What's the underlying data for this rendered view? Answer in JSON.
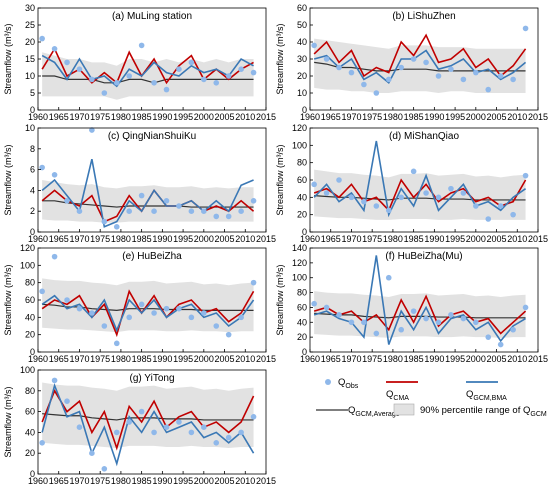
{
  "legend": [
    {
      "symbol": "Q",
      "subscript": "Obs",
      "color": "#8fb8ea",
      "kind": "marker"
    },
    {
      "symbol": "Q",
      "subscript": "CMA",
      "color": "#c00000",
      "kind": "line"
    },
    {
      "symbol": "Q",
      "subscript": "GCM,BMA",
      "color": "#3a78b5",
      "kind": "line"
    },
    {
      "symbol": "Q",
      "subscript": "GCM,Average",
      "color": "#333333",
      "kind": "line"
    },
    {
      "text": "90% percentile range of Q",
      "subscript": "GCM",
      "color": "#e2e2e2",
      "kind": "area"
    }
  ],
  "chart_data": [
    {
      "type": "line",
      "title": "(a) MuLing station",
      "y_label": "Streamflow (m³/s)",
      "x": [
        1961,
        1964,
        1967,
        1970,
        1973,
        1976,
        1979,
        1982,
        1985,
        1988,
        1991,
        1994,
        1997,
        2000,
        2003,
        2006,
        2009,
        2012
      ],
      "xlim": [
        1960,
        2015
      ],
      "xticks": [
        1960,
        1965,
        1970,
        1975,
        1980,
        1985,
        1990,
        1995,
        2000,
        2005,
        2010,
        2015
      ],
      "ylim": [
        0,
        30
      ],
      "yticks": [
        0,
        5,
        10,
        15,
        20,
        25,
        30
      ],
      "band": {
        "low": [
          4,
          4,
          4,
          4,
          4,
          4,
          3,
          4,
          4,
          4,
          4,
          4,
          4,
          4,
          4,
          4,
          4,
          4
        ],
        "high": [
          17,
          16,
          15,
          15,
          14,
          14,
          13,
          15,
          15,
          14,
          15,
          14,
          15,
          14,
          15,
          14,
          15,
          15
        ]
      },
      "series": [
        {
          "values": [
            21,
            18,
            14,
            12,
            9,
            5,
            8,
            10,
            19,
            8,
            6,
            12,
            14,
            9,
            8,
            10,
            12,
            11
          ]
        },
        {
          "values": [
            12,
            18,
            10,
            12,
            8,
            11,
            8,
            17,
            10,
            15,
            8,
            13,
            16,
            9,
            12,
            9,
            12,
            14
          ]
        },
        {
          "values": [
            16,
            14,
            9,
            15,
            9,
            10,
            7,
            12,
            10,
            14,
            11,
            10,
            13,
            11,
            12,
            10,
            15,
            13
          ]
        },
        {
          "values": [
            10,
            10,
            9,
            9,
            9,
            8,
            8,
            9,
            9,
            8,
            9,
            9,
            9,
            9,
            9,
            9,
            9,
            9
          ]
        }
      ]
    },
    {
      "type": "line",
      "title": "(b) LiShuZhen",
      "y_label": "Streamflow (m³/s)",
      "x": [
        1961,
        1964,
        1967,
        1970,
        1973,
        1976,
        1979,
        1982,
        1985,
        1988,
        1991,
        1994,
        1997,
        2000,
        2003,
        2006,
        2009,
        2012
      ],
      "xlim": [
        1960,
        2015
      ],
      "xticks": [
        1960,
        1965,
        1970,
        1975,
        1980,
        1985,
        1990,
        1995,
        2000,
        2005,
        2010,
        2015
      ],
      "ylim": [
        0,
        60
      ],
      "yticks": [
        0,
        10,
        20,
        30,
        40,
        50,
        60
      ],
      "band": {
        "low": [
          13,
          12,
          12,
          11,
          11,
          10,
          10,
          11,
          11,
          11,
          10,
          11,
          11,
          10,
          10,
          10,
          10,
          10
        ],
        "high": [
          42,
          41,
          40,
          39,
          38,
          37,
          36,
          38,
          38,
          38,
          37,
          37,
          37,
          36,
          36,
          36,
          36,
          36
        ]
      },
      "series": [
        {
          "values": [
            38,
            30,
            25,
            22,
            15,
            10,
            18,
            25,
            30,
            28,
            20,
            24,
            18,
            22,
            12,
            20,
            18,
            48
          ]
        },
        {
          "values": [
            33,
            40,
            28,
            35,
            20,
            25,
            22,
            40,
            32,
            44,
            28,
            30,
            36,
            25,
            30,
            20,
            26,
            36
          ]
        },
        {
          "values": [
            30,
            32,
            25,
            30,
            18,
            22,
            16,
            30,
            30,
            35,
            24,
            26,
            30,
            22,
            24,
            18,
            22,
            28
          ]
        },
        {
          "values": [
            28,
            27,
            25,
            25,
            24,
            23,
            23,
            24,
            24,
            24,
            23,
            23,
            23,
            23,
            23,
            23,
            23,
            23
          ]
        }
      ]
    },
    {
      "type": "line",
      "title": "(c) QingNianShuiKu",
      "y_label": "Streamflow (m³/s)",
      "x": [
        1961,
        1964,
        1967,
        1970,
        1973,
        1976,
        1979,
        1982,
        1985,
        1988,
        1991,
        1994,
        1997,
        2000,
        2003,
        2006,
        2009,
        2012
      ],
      "xlim": [
        1960,
        2015
      ],
      "xticks": [
        1960,
        1965,
        1970,
        1975,
        1980,
        1985,
        1990,
        1995,
        2000,
        2005,
        2010,
        2015
      ],
      "ylim": [
        0,
        10
      ],
      "yticks": [
        0,
        2,
        4,
        6,
        8,
        10
      ],
      "band": {
        "low": [
          1.2,
          1.1,
          1.1,
          1,
          1,
          0.9,
          0.9,
          1,
          1,
          1,
          1,
          1,
          1,
          1,
          1,
          1,
          1,
          1
        ],
        "high": [
          5,
          4.8,
          4.6,
          4.5,
          4.6,
          4.3,
          4.2,
          4.4,
          4.4,
          4.5,
          4.3,
          4.3,
          4.4,
          4.2,
          4.3,
          4.2,
          4.3,
          4.3
        ]
      },
      "series": [
        {
          "values": [
            6.2,
            5.5,
            3,
            2,
            9.8,
            1,
            0.5,
            2,
            3.5,
            2,
            3,
            2.5,
            2,
            2,
            1.5,
            1.5,
            2,
            3
          ]
        },
        {
          "values": [
            3,
            4,
            3,
            2.5,
            3.5,
            1,
            1.5,
            3.5,
            2,
            4,
            2.5,
            2.5,
            3,
            2,
            2.5,
            2,
            3,
            2
          ]
        },
        {
          "values": [
            4,
            5,
            3.5,
            2,
            7,
            0.5,
            1,
            3,
            2,
            4,
            2.5,
            2.5,
            3,
            2,
            3,
            2,
            4.5,
            5
          ]
        },
        {
          "values": [
            3,
            3,
            2.8,
            2.7,
            2.6,
            2.5,
            2.4,
            2.5,
            2.5,
            2.5,
            2.5,
            2.5,
            2.4,
            2.4,
            2.4,
            2.4,
            2.4,
            2.4
          ]
        }
      ]
    },
    {
      "type": "line",
      "title": "(d) MiShanQiao",
      "y_label": "Streamflow (m³/s)",
      "x": [
        1961,
        1964,
        1967,
        1970,
        1973,
        1976,
        1979,
        1982,
        1985,
        1988,
        1991,
        1994,
        1997,
        2000,
        2003,
        2006,
        2009,
        2012
      ],
      "xlim": [
        1960,
        2015
      ],
      "xticks": [
        1960,
        1965,
        1970,
        1975,
        1980,
        1985,
        1990,
        1995,
        2000,
        2005,
        2010,
        2015
      ],
      "ylim": [
        0,
        120
      ],
      "yticks": [
        0,
        20,
        40,
        60,
        80,
        100,
        120
      ],
      "band": {
        "low": [
          18,
          17,
          16,
          16,
          15,
          14,
          14,
          15,
          15,
          15,
          14,
          14,
          15,
          14,
          14,
          14,
          14,
          14
        ],
        "high": [
          72,
          70,
          68,
          68,
          66,
          65,
          63,
          67,
          67,
          68,
          65,
          66,
          67,
          64,
          65,
          63,
          65,
          66
        ]
      },
      "series": [
        {
          "values": [
            55,
            45,
            60,
            40,
            35,
            30,
            25,
            40,
            70,
            45,
            40,
            50,
            45,
            30,
            15,
            30,
            20,
            65
          ]
        },
        {
          "values": [
            45,
            50,
            40,
            55,
            35,
            40,
            25,
            60,
            40,
            55,
            35,
            45,
            50,
            35,
            40,
            30,
            35,
            60
          ]
        },
        {
          "values": [
            40,
            55,
            35,
            45,
            25,
            105,
            20,
            50,
            30,
            65,
            25,
            40,
            55,
            30,
            35,
            25,
            40,
            50
          ]
        },
        {
          "values": [
            42,
            41,
            40,
            40,
            39,
            38,
            37,
            39,
            39,
            39,
            38,
            38,
            38,
            37,
            37,
            37,
            37,
            37
          ]
        }
      ]
    },
    {
      "type": "line",
      "title": "(e) HuBeiZha",
      "y_label": "Streamflow (m³/s)",
      "x": [
        1961,
        1964,
        1967,
        1970,
        1973,
        1976,
        1979,
        1982,
        1985,
        1988,
        1991,
        1994,
        1997,
        2000,
        2003,
        2006,
        2009,
        2012
      ],
      "xlim": [
        1960,
        2015
      ],
      "xticks": [
        1960,
        1965,
        1970,
        1975,
        1980,
        1985,
        1990,
        1995,
        2000,
        2005,
        2010,
        2015
      ],
      "ylim": [
        0,
        120
      ],
      "yticks": [
        0,
        20,
        40,
        60,
        80,
        100,
        120
      ],
      "band": {
        "low": [
          28,
          27,
          26,
          26,
          25,
          24,
          23,
          25,
          25,
          25,
          24,
          24,
          25,
          24,
          24,
          23,
          24,
          24
        ],
        "high": [
          85,
          83,
          82,
          82,
          80,
          79,
          77,
          81,
          81,
          82,
          79,
          80,
          81,
          78,
          79,
          77,
          79,
          80
        ]
      },
      "series": [
        {
          "values": [
            70,
            110,
            60,
            50,
            45,
            30,
            10,
            40,
            55,
            45,
            50,
            50,
            40,
            45,
            30,
            20,
            40,
            80
          ]
        },
        {
          "values": [
            50,
            60,
            55,
            65,
            40,
            55,
            20,
            70,
            45,
            65,
            40,
            55,
            60,
            45,
            50,
            35,
            45,
            70
          ]
        },
        {
          "values": [
            55,
            65,
            50,
            55,
            40,
            60,
            25,
            60,
            45,
            60,
            40,
            50,
            55,
            40,
            45,
            30,
            40,
            60
          ]
        },
        {
          "values": [
            55,
            54,
            52,
            52,
            50,
            49,
            48,
            50,
            50,
            50,
            49,
            49,
            49,
            48,
            48,
            48,
            48,
            48
          ]
        }
      ]
    },
    {
      "type": "line",
      "title": "(f) HuBeiZha(Mu)",
      "y_label": "Streamflow (m³/s)",
      "x": [
        1961,
        1964,
        1967,
        1970,
        1973,
        1976,
        1979,
        1982,
        1985,
        1988,
        1991,
        1994,
        1997,
        2000,
        2003,
        2006,
        2009,
        2012
      ],
      "xlim": [
        1960,
        2015
      ],
      "xticks": [
        1960,
        1965,
        1970,
        1975,
        1980,
        1985,
        1990,
        1995,
        2000,
        2005,
        2010,
        2015
      ],
      "ylim": [
        0,
        140
      ],
      "yticks": [
        0,
        20,
        40,
        60,
        80,
        100,
        120,
        140
      ],
      "band": {
        "low": [
          24,
          23,
          22,
          22,
          21,
          20,
          19,
          21,
          21,
          21,
          20,
          20,
          21,
          20,
          20,
          19,
          20,
          20
        ],
        "high": [
          82,
          80,
          79,
          79,
          77,
          76,
          74,
          78,
          78,
          79,
          76,
          77,
          78,
          75,
          76,
          74,
          76,
          77
        ]
      },
      "series": [
        {
          "values": [
            65,
            60,
            50,
            40,
            40,
            25,
            100,
            30,
            55,
            45,
            40,
            50,
            45,
            40,
            20,
            10,
            30,
            60
          ]
        },
        {
          "values": [
            55,
            60,
            50,
            55,
            40,
            50,
            30,
            70,
            40,
            75,
            35,
            50,
            55,
            40,
            45,
            25,
            40,
            55
          ]
        },
        {
          "values": [
            50,
            55,
            45,
            40,
            20,
            130,
            10,
            55,
            30,
            60,
            25,
            45,
            50,
            30,
            40,
            15,
            35,
            45
          ]
        },
        {
          "values": [
            52,
            51,
            50,
            50,
            48,
            47,
            46,
            48,
            48,
            48,
            47,
            47,
            47,
            46,
            46,
            46,
            46,
            46
          ]
        }
      ]
    },
    {
      "type": "line",
      "title": "(g) YiTong",
      "y_label": "Streamflow (m³/s)",
      "x": [
        1961,
        1964,
        1967,
        1970,
        1973,
        1976,
        1979,
        1982,
        1985,
        1988,
        1991,
        1994,
        1997,
        2000,
        2003,
        2006,
        2009,
        2012
      ],
      "xlim": [
        1960,
        2015
      ],
      "xticks": [
        1960,
        1965,
        1970,
        1975,
        1980,
        1985,
        1990,
        1995,
        2000,
        2005,
        2010,
        2015
      ],
      "ylim": [
        0,
        100
      ],
      "yticks": [
        0,
        20,
        40,
        60,
        80,
        100
      ],
      "band": {
        "low": [
          30,
          29,
          28,
          28,
          27,
          26,
          25,
          27,
          27,
          27,
          26,
          26,
          27,
          26,
          26,
          25,
          26,
          26
        ],
        "high": [
          88,
          86,
          85,
          85,
          83,
          82,
          80,
          84,
          84,
          85,
          82,
          83,
          84,
          81,
          82,
          80,
          82,
          83
        ]
      },
      "series": [
        {
          "values": [
            30,
            90,
            70,
            45,
            20,
            5,
            40,
            50,
            60,
            40,
            45,
            50,
            40,
            45,
            30,
            35,
            40,
            55
          ]
        },
        {
          "values": [
            50,
            80,
            60,
            70,
            40,
            60,
            25,
            65,
            50,
            70,
            45,
            55,
            60,
            45,
            50,
            40,
            50,
            75
          ]
        },
        {
          "values": [
            40,
            85,
            55,
            60,
            20,
            45,
            10,
            55,
            40,
            60,
            40,
            45,
            50,
            35,
            40,
            30,
            40,
            20
          ]
        },
        {
          "values": [
            58,
            57,
            56,
            56,
            54,
            53,
            52,
            54,
            54,
            54,
            53,
            53,
            53,
            52,
            52,
            52,
            52,
            52
          ]
        }
      ]
    }
  ]
}
